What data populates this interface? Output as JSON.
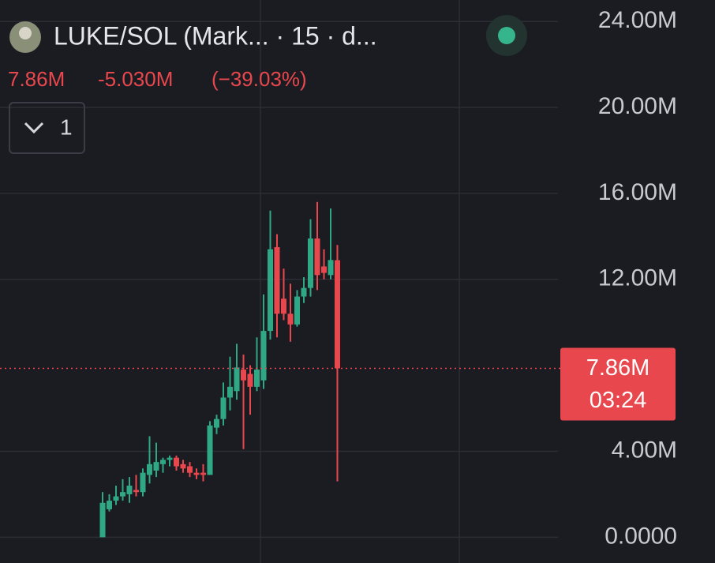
{
  "header": {
    "title": "LUKE/SOL (Mark... · 15 · d...",
    "last": "7.86M",
    "change": "-5.030M",
    "change_pct": "(−39.03%)",
    "badge": "1"
  },
  "chart_data": {
    "type": "candlestick",
    "categories": [
      null,
      null,
      null,
      null,
      null,
      null,
      null,
      null,
      null,
      null,
      null,
      null,
      null,
      null,
      null,
      null,
      null,
      null,
      null,
      null,
      null,
      null,
      null,
      null,
      null,
      null,
      null,
      null,
      null,
      null,
      null,
      null,
      null,
      null,
      null,
      null
    ],
    "open": [
      0.0,
      1.3,
      1.7,
      1.9,
      2.0,
      2.2,
      2.1,
      2.9,
      3.1,
      3.4,
      3.6,
      3.7,
      3.4,
      3.3,
      3.0,
      3.0,
      2.9,
      5.1,
      5.5,
      6.5,
      6.8,
      7.8,
      7.6,
      7.0,
      7.3,
      9.6,
      13.5,
      11.1,
      10.4,
      9.9,
      11.2,
      11.6,
      13.9,
      12.6,
      12.2,
      12.89
    ],
    "high": [
      2.1,
      2.0,
      2.4,
      2.7,
      2.8,
      2.9,
      3.2,
      4.7,
      4.4,
      3.7,
      3.8,
      3.8,
      3.6,
      3.5,
      3.2,
      3.4,
      5.4,
      5.7,
      7.2,
      8.4,
      9.0,
      8.5,
      8.0,
      9.3,
      11.3,
      15.2,
      14.1,
      12.5,
      11.8,
      11.5,
      12.1,
      14.8,
      15.6,
      13.4,
      15.3,
      13.6
    ],
    "low": [
      0.0,
      1.2,
      1.5,
      1.7,
      1.6,
      1.9,
      1.9,
      2.5,
      2.8,
      3.0,
      3.3,
      3.1,
      3.0,
      2.8,
      2.7,
      2.6,
      2.9,
      4.8,
      5.2,
      5.9,
      6.4,
      4.1,
      5.7,
      6.8,
      6.9,
      9.2,
      9.3,
      10.1,
      9.1,
      9.8,
      10.9,
      11.2,
      11.5,
      12.0,
      12.0,
      2.6
    ],
    "close": [
      1.6,
      1.7,
      1.9,
      2.1,
      2.4,
      2.1,
      3.0,
      3.4,
      3.5,
      3.6,
      3.7,
      3.3,
      3.2,
      3.0,
      2.9,
      2.9,
      5.2,
      5.5,
      6.5,
      7.0,
      7.9,
      7.3,
      7.0,
      7.8,
      9.6,
      13.4,
      10.4,
      10.4,
      9.9,
      11.2,
      11.6,
      13.9,
      12.2,
      12.3,
      12.9,
      7.86
    ],
    "up_color": "#2fa886",
    "down_color": "#e8474d",
    "ylim": [
      -1.2,
      25
    ],
    "yticks": [
      {
        "value": 0,
        "label": "0.0000"
      },
      {
        "value": 4,
        "label": "4.00M"
      },
      {
        "value": 12,
        "label": "12.00M"
      },
      {
        "value": 16,
        "label": "16.00M"
      },
      {
        "value": 20,
        "label": "20.00M"
      },
      {
        "value": 24,
        "label": "24.00M"
      }
    ],
    "grid": true,
    "last_price": {
      "value": 7.86,
      "label": "7.86M"
    },
    "countdown": "03:24"
  }
}
